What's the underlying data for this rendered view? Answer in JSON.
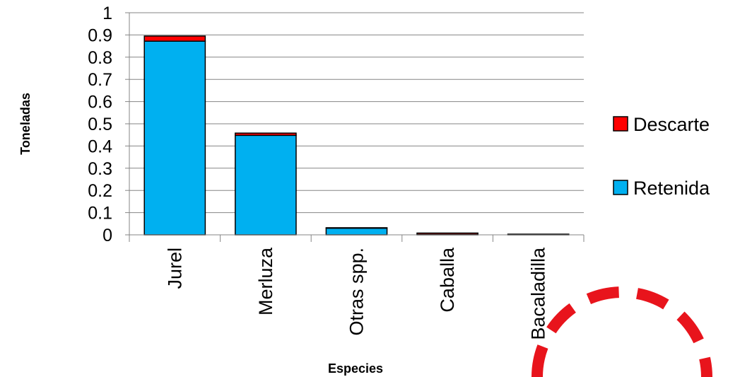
{
  "chart_data": {
    "type": "bar",
    "stacked": true,
    "categories": [
      "Jurel",
      "Merluza",
      "Otras spp.",
      "Caballa",
      "Bacaladilla"
    ],
    "series": [
      {
        "name": "Retenida",
        "color": "#00B0F0",
        "values": [
          0.872,
          0.448,
          0.03,
          0.002,
          0.002
        ]
      },
      {
        "name": "Descarte",
        "color": "#FF0000",
        "values": [
          0.023,
          0.01,
          0.002,
          0.006,
          0.001
        ]
      }
    ],
    "xlabel": "Especies",
    "ylabel": "Toneladas",
    "ylim": [
      0,
      1
    ],
    "yticks": [
      "0",
      "0.1",
      "0.2",
      "0.3",
      "0.4",
      "0.5",
      "0.6",
      "0.7",
      "0.8",
      "0.9",
      "1"
    ],
    "grid": true,
    "legend": {
      "position": "right",
      "order": [
        "Descarte",
        "Retenida"
      ]
    }
  },
  "decoration": {
    "ring_color": "#E8141C"
  }
}
